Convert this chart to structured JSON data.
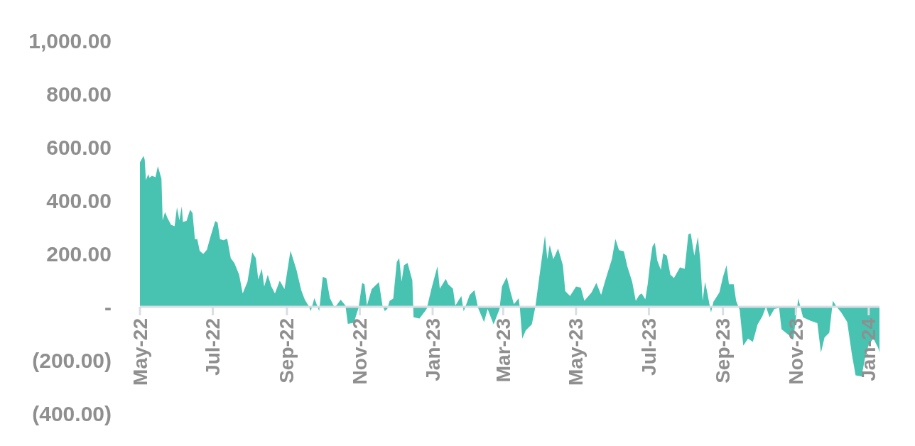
{
  "chart_data": {
    "type": "area",
    "color": "#48c3b1",
    "x": [
      "2022-05-01",
      "2022-05-04",
      "2022-05-05",
      "2022-05-06",
      "2022-05-08",
      "2022-05-09",
      "2022-05-11",
      "2022-05-14",
      "2022-05-16",
      "2022-05-19",
      "2022-05-20",
      "2022-05-22",
      "2022-05-24",
      "2022-05-27",
      "2022-05-30",
      "2022-06-01",
      "2022-06-03",
      "2022-06-05",
      "2022-06-06",
      "2022-06-09",
      "2022-06-12",
      "2022-06-14",
      "2022-06-16",
      "2022-06-18",
      "2022-06-20",
      "2022-06-23",
      "2022-06-26",
      "2022-06-29",
      "2022-07-03",
      "2022-07-05",
      "2022-07-07",
      "2022-07-10",
      "2022-07-13",
      "2022-07-16",
      "2022-07-19",
      "2022-07-23",
      "2022-07-26",
      "2022-07-30",
      "2022-08-03",
      "2022-08-06",
      "2022-08-08",
      "2022-08-11",
      "2022-08-13",
      "2022-08-16",
      "2022-08-19",
      "2022-08-22",
      "2022-08-26",
      "2022-08-30",
      "2022-09-04",
      "2022-09-09",
      "2022-09-13",
      "2022-09-16",
      "2022-09-19",
      "2022-09-21",
      "2022-09-24",
      "2022-09-28",
      "2022-10-01",
      "2022-10-04",
      "2022-10-07",
      "2022-10-11",
      "2022-10-16",
      "2022-10-20",
      "2022-10-22",
      "2022-10-27",
      "2022-10-31",
      "2022-11-03",
      "2022-11-05",
      "2022-11-07",
      "2022-11-11",
      "2022-11-17",
      "2022-11-20",
      "2022-11-22",
      "2022-11-24",
      "2022-11-26",
      "2022-11-29",
      "2022-12-02",
      "2022-12-04",
      "2022-12-06",
      "2022-12-08",
      "2022-12-11",
      "2022-12-15",
      "2022-12-16",
      "2022-12-21",
      "2022-12-27",
      "2022-12-31",
      "2023-01-05",
      "2023-01-07",
      "2023-01-12",
      "2023-01-14",
      "2023-01-18",
      "2023-01-20",
      "2023-01-25",
      "2023-01-27",
      "2023-02-01",
      "2023-02-05",
      "2023-02-08",
      "2023-02-13",
      "2023-02-16",
      "2023-02-21",
      "2023-02-26",
      "2023-02-28",
      "2023-03-04",
      "2023-03-07",
      "2023-03-10",
      "2023-03-14",
      "2023-03-15",
      "2023-03-17",
      "2023-03-20",
      "2023-03-25",
      "2023-03-28",
      "2023-03-31",
      "2023-04-05",
      "2023-04-07",
      "2023-04-09",
      "2023-04-12",
      "2023-04-16",
      "2023-04-20",
      "2023-04-22",
      "2023-04-26",
      "2023-05-01",
      "2023-05-05",
      "2023-05-08",
      "2023-05-14",
      "2023-05-18",
      "2023-05-22",
      "2023-05-26",
      "2023-05-31",
      "2023-06-03",
      "2023-06-06",
      "2023-06-10",
      "2023-06-13",
      "2023-06-17",
      "2023-06-20",
      "2023-06-23",
      "2023-06-25",
      "2023-06-28",
      "2023-06-30",
      "2023-07-02",
      "2023-07-04",
      "2023-07-06",
      "2023-07-08",
      "2023-07-11",
      "2023-07-13",
      "2023-07-16",
      "2023-07-19",
      "2023-07-22",
      "2023-07-27",
      "2023-07-31",
      "2023-08-03",
      "2023-08-05",
      "2023-08-08",
      "2023-08-11",
      "2023-08-13",
      "2023-08-15",
      "2023-08-17",
      "2023-08-19",
      "2023-08-22",
      "2023-08-24",
      "2023-08-29",
      "2023-09-01",
      "2023-09-04",
      "2023-09-06",
      "2023-09-10",
      "2023-09-12",
      "2023-09-15",
      "2023-09-18",
      "2023-09-22",
      "2023-09-26",
      "2023-09-30",
      "2023-10-04",
      "2023-10-07",
      "2023-10-10",
      "2023-10-14",
      "2023-10-18",
      "2023-10-20",
      "2023-10-26",
      "2023-10-30",
      "2023-11-03",
      "2023-11-07",
      "2023-11-13",
      "2023-11-19",
      "2023-11-22",
      "2023-11-25",
      "2023-11-29",
      "2023-12-02",
      "2023-12-05",
      "2023-12-09",
      "2023-12-14",
      "2023-12-18",
      "2023-12-21",
      "2023-12-26",
      "2023-12-29",
      "2024-01-01",
      "2024-01-05",
      "2024-01-09",
      "2024-01-10"
    ],
    "values": [
      543,
      567,
      552,
      476,
      498,
      485,
      492,
      487,
      528,
      481,
      325,
      356,
      334,
      308,
      303,
      374,
      325,
      377,
      319,
      323,
      365,
      352,
      254,
      254,
      210,
      199,
      214,
      263,
      322,
      316,
      254,
      250,
      256,
      183,
      165,
      121,
      50,
      94,
      205,
      183,
      103,
      143,
      76,
      120,
      76,
      50,
      98,
      67,
      211,
      139,
      63,
      27,
      5,
      -16,
      33,
      -16,
      112,
      108,
      33,
      -3,
      27,
      5,
      -64,
      -60,
      -3,
      90,
      84,
      5,
      67,
      93,
      5,
      -16,
      -8,
      23,
      31,
      169,
      183,
      94,
      156,
      165,
      99,
      -39,
      -44,
      -8,
      68,
      152,
      68,
      105,
      85,
      68,
      5,
      41,
      -17,
      45,
      63,
      -4,
      -57,
      -8,
      -66,
      -8,
      76,
      112,
      59,
      10,
      32,
      -4,
      -119,
      -88,
      -66,
      1,
      103,
      268,
      179,
      232,
      179,
      219,
      156,
      59,
      41,
      76,
      72,
      23,
      54,
      90,
      45,
      107,
      179,
      255,
      213,
      209,
      151,
      94,
      23,
      45,
      50,
      28,
      85,
      165,
      227,
      241,
      174,
      139,
      201,
      192,
      121,
      108,
      148,
      143,
      272,
      276,
      192,
      263,
      174,
      23,
      94,
      50,
      -21,
      19,
      54,
      112,
      156,
      85,
      85,
      23,
      -12,
      -146,
      -119,
      -132,
      -66,
      -35,
      1,
      -39,
      -8,
      -4,
      -84,
      -106,
      -119,
      32,
      -39,
      -52,
      -61,
      -172,
      -115,
      -97,
      23,
      1,
      -21,
      -57,
      -181,
      -257,
      -261,
      -190,
      -141,
      -119,
      -155,
      -172
    ],
    "xlim": [
      "2022-05-01",
      "2024-01-10"
    ],
    "xticks": [
      {
        "value": "2022-05-01",
        "label": "May-22"
      },
      {
        "value": "2022-07-01",
        "label": "Jul-22"
      },
      {
        "value": "2022-09-01",
        "label": "Sep-22"
      },
      {
        "value": "2022-11-01",
        "label": "Nov-22"
      },
      {
        "value": "2023-01-01",
        "label": "Jan-23"
      },
      {
        "value": "2023-03-01",
        "label": "Mar-23"
      },
      {
        "value": "2023-05-01",
        "label": "May-23"
      },
      {
        "value": "2023-07-01",
        "label": "Jul-23"
      },
      {
        "value": "2023-09-01",
        "label": "Sep-23"
      },
      {
        "value": "2023-11-01",
        "label": "Nov-23"
      },
      {
        "value": "2024-01-01",
        "label": "Jan-24"
      }
    ],
    "ylim": [
      -400,
      1000
    ],
    "yticks": [
      {
        "value": -400,
        "label": "(400.00)"
      },
      {
        "value": -200,
        "label": "(200.00)"
      },
      {
        "value": 0,
        "label": "-"
      },
      {
        "value": 200,
        "label": "200.00"
      },
      {
        "value": 400,
        "label": "400.00"
      },
      {
        "value": 600,
        "label": "600.00"
      },
      {
        "value": 800,
        "label": "800.00"
      },
      {
        "value": 1000,
        "label": "1,000.00"
      }
    ],
    "grid": false,
    "legend": false
  }
}
